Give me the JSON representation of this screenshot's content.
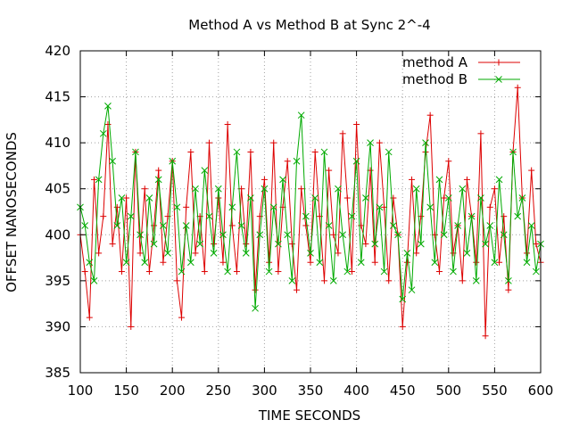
{
  "chart_data": {
    "type": "line",
    "title": "Method A vs Method B at Sync 2^-4",
    "xlabel": "TIME SECONDS",
    "ylabel": "OFFSET NANOSECONDS",
    "xlim": [
      100,
      600
    ],
    "ylim": [
      385,
      420
    ],
    "xticks": [
      100,
      150,
      200,
      250,
      300,
      350,
      400,
      450,
      500,
      550,
      600
    ],
    "yticks": [
      385,
      390,
      395,
      400,
      405,
      410,
      415,
      420
    ],
    "grid": true,
    "legend_position": "top-right",
    "series": [
      {
        "name": "method A",
        "color": "#dd0000",
        "marker": "plus",
        "x": [
          100,
          105,
          110,
          115,
          120,
          125,
          130,
          135,
          140,
          145,
          150,
          155,
          160,
          165,
          170,
          175,
          180,
          185,
          190,
          195,
          200,
          205,
          210,
          215,
          220,
          225,
          230,
          235,
          240,
          245,
          250,
          255,
          260,
          265,
          270,
          275,
          280,
          285,
          290,
          295,
          300,
          305,
          310,
          315,
          320,
          325,
          330,
          335,
          340,
          345,
          350,
          355,
          360,
          365,
          370,
          375,
          380,
          385,
          390,
          395,
          400,
          405,
          410,
          415,
          420,
          425,
          430,
          435,
          440,
          445,
          450,
          455,
          460,
          465,
          470,
          475,
          480,
          485,
          490,
          495,
          500,
          505,
          510,
          515,
          520,
          525,
          530,
          535,
          540,
          545,
          550,
          555,
          560,
          565,
          570,
          575,
          580,
          585,
          590,
          595,
          600
        ],
        "y": [
          400,
          396,
          391,
          406,
          398,
          402,
          412,
          399,
          403,
          396,
          404,
          390,
          409,
          398,
          405,
          396,
          401,
          407,
          397,
          402,
          408,
          395,
          391,
          403,
          409,
          398,
          402,
          396,
          410,
          399,
          404,
          397,
          412,
          401,
          396,
          405,
          399,
          409,
          394,
          402,
          406,
          397,
          410,
          396,
          403,
          408,
          399,
          394,
          405,
          401,
          397,
          409,
          402,
          395,
          407,
          400,
          398,
          411,
          404,
          396,
          412,
          401,
          399,
          407,
          397,
          410,
          403,
          395,
          404,
          400,
          390,
          397,
          406,
          398,
          402,
          409,
          413,
          400,
          396,
          404,
          408,
          398,
          401,
          395,
          406,
          402,
          397,
          411,
          389,
          403,
          405,
          397,
          402,
          394,
          409,
          416,
          404,
          398,
          407,
          399,
          397
        ]
      },
      {
        "name": "method B",
        "color": "#00aa00",
        "marker": "cross",
        "x": [
          100,
          105,
          110,
          115,
          120,
          125,
          130,
          135,
          140,
          145,
          150,
          155,
          160,
          165,
          170,
          175,
          180,
          185,
          190,
          195,
          200,
          205,
          210,
          215,
          220,
          225,
          230,
          235,
          240,
          245,
          250,
          255,
          260,
          265,
          270,
          275,
          280,
          285,
          290,
          295,
          300,
          305,
          310,
          315,
          320,
          325,
          330,
          335,
          340,
          345,
          350,
          355,
          360,
          365,
          370,
          375,
          380,
          385,
          390,
          395,
          400,
          405,
          410,
          415,
          420,
          425,
          430,
          435,
          440,
          445,
          450,
          455,
          460,
          465,
          470,
          475,
          480,
          485,
          490,
          495,
          500,
          505,
          510,
          515,
          520,
          525,
          530,
          535,
          540,
          545,
          550,
          555,
          560,
          565,
          570,
          575,
          580,
          585,
          590,
          595,
          600
        ],
        "y": [
          403,
          401,
          397,
          395,
          406,
          411,
          414,
          408,
          401,
          404,
          397,
          402,
          409,
          400,
          397,
          404,
          399,
          406,
          401,
          398,
          408,
          403,
          396,
          401,
          397,
          405,
          399,
          407,
          402,
          398,
          405,
          400,
          396,
          403,
          409,
          401,
          398,
          404,
          392,
          400,
          405,
          396,
          403,
          399,
          406,
          400,
          395,
          408,
          413,
          402,
          398,
          404,
          397,
          409,
          401,
          395,
          405,
          400,
          396,
          402,
          408,
          397,
          404,
          410,
          399,
          403,
          396,
          409,
          401,
          400,
          393,
          398,
          394,
          405,
          399,
          410,
          403,
          397,
          406,
          400,
          404,
          396,
          401,
          405,
          398,
          402,
          395,
          404,
          399,
          401,
          397,
          406,
          400,
          395,
          409,
          402,
          404,
          397,
          401,
          396,
          399
        ]
      }
    ]
  }
}
